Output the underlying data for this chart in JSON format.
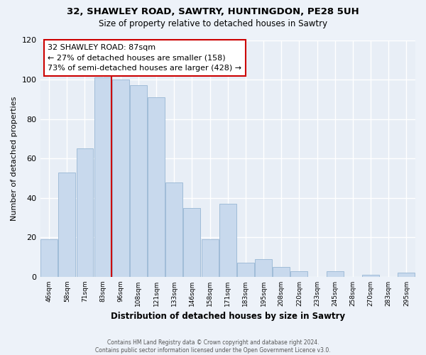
{
  "title1": "32, SHAWLEY ROAD, SAWTRY, HUNTINGDON, PE28 5UH",
  "title2": "Size of property relative to detached houses in Sawtry",
  "xlabel": "Distribution of detached houses by size in Sawtry",
  "ylabel": "Number of detached properties",
  "bar_labels": [
    "46sqm",
    "58sqm",
    "71sqm",
    "83sqm",
    "96sqm",
    "108sqm",
    "121sqm",
    "133sqm",
    "146sqm",
    "158sqm",
    "171sqm",
    "183sqm",
    "195sqm",
    "208sqm",
    "220sqm",
    "233sqm",
    "245sqm",
    "258sqm",
    "270sqm",
    "283sqm",
    "295sqm"
  ],
  "bar_values": [
    19,
    53,
    65,
    101,
    100,
    97,
    91,
    48,
    35,
    19,
    37,
    7,
    9,
    5,
    3,
    0,
    3,
    0,
    1,
    0,
    2
  ],
  "bar_color": "#c8d9ed",
  "bar_edge_color": "#a0bcd8",
  "highlight_line_color": "#cc0000",
  "annotation_line1": "32 SHAWLEY ROAD: 87sqm",
  "annotation_line2": "← 27% of detached houses are smaller (158)",
  "annotation_line3": "73% of semi-detached houses are larger (428) →",
  "annotation_box_color": "#ffffff",
  "annotation_box_edge": "#cc0000",
  "ylim": [
    0,
    120
  ],
  "yticks": [
    0,
    20,
    40,
    60,
    80,
    100,
    120
  ],
  "footer_text": "Contains HM Land Registry data © Crown copyright and database right 2024.\nContains public sector information licensed under the Open Government Licence v3.0.",
  "bg_color": "#edf2f9",
  "plot_bg_color": "#e8eef6",
  "grid_color": "#ffffff"
}
